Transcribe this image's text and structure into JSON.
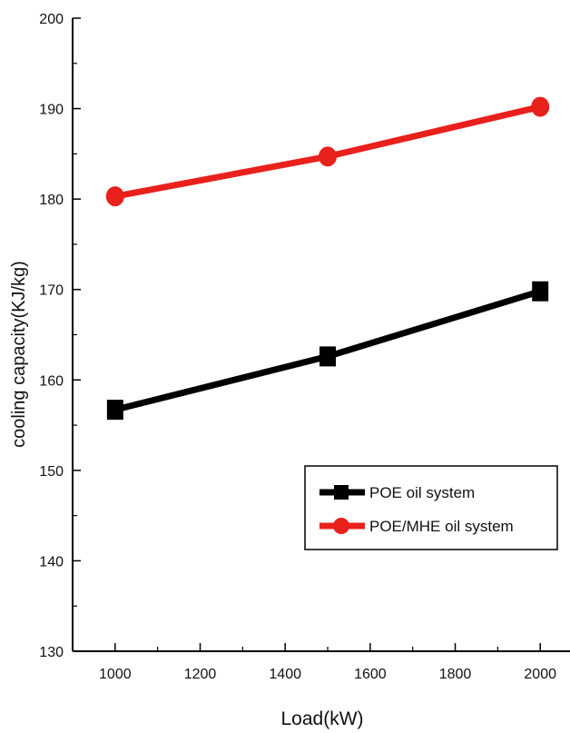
{
  "chart_data": {
    "type": "line",
    "xlabel": "Load(kW)",
    "ylabel": "cooling capacity(KJ/kg)",
    "xlim": [
      900,
      2070
    ],
    "ylim": [
      130,
      200
    ],
    "x_ticks": [
      1000,
      1200,
      1400,
      1600,
      1800,
      2000
    ],
    "y_ticks": [
      130,
      140,
      150,
      160,
      170,
      180,
      190,
      200
    ],
    "x": [
      1000,
      1500,
      2000
    ],
    "series": [
      {
        "name": "POE oil system",
        "values": [
          156.7,
          162.6,
          169.8
        ],
        "color": "#000000",
        "marker": "square"
      },
      {
        "name": "POE/MHE oil system",
        "values": [
          180.3,
          184.7,
          190.2
        ],
        "color": "#e8211d",
        "marker": "circle"
      }
    ],
    "legend_position": "bottom-right",
    "grid": false
  }
}
